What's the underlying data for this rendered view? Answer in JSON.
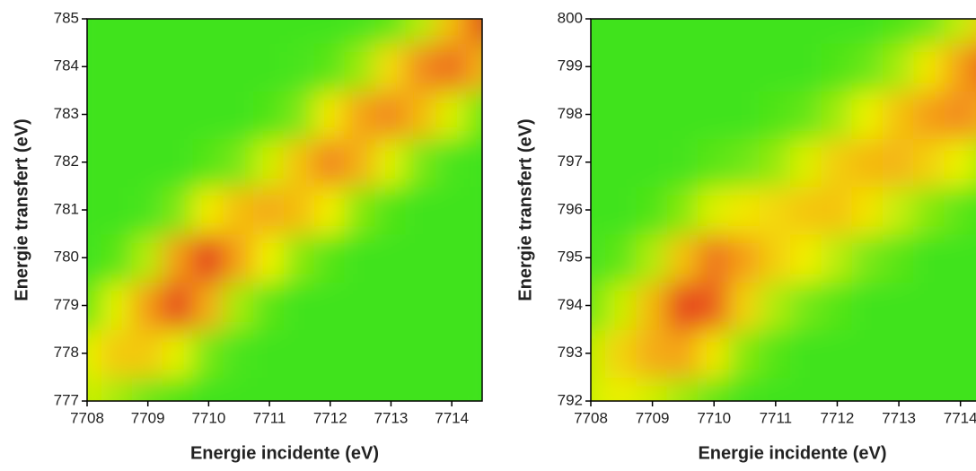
{
  "chart_data": [
    {
      "type": "heatmap",
      "xlabel": "Energie incidente (eV)",
      "ylabel": "Energie transfert (eV)",
      "xlim": [
        7708,
        7714.5
      ],
      "ylim": [
        777,
        785
      ],
      "xticks": [
        7708,
        7709,
        7710,
        7711,
        7712,
        7713,
        7714
      ],
      "yticks": [
        777,
        778,
        779,
        780,
        781,
        782,
        783,
        784,
        785
      ],
      "x": [
        7708,
        7708.5,
        7709,
        7709.5,
        7710,
        7710.5,
        7711,
        7711.5,
        7712,
        7712.5,
        7713,
        7713.5,
        7714,
        7714.5
      ],
      "y": [
        777,
        778,
        779,
        780,
        781,
        782,
        783,
        784,
        785
      ],
      "z": [
        [
          0.27,
          0.19,
          0.09,
          0.03,
          0,
          0,
          0,
          0,
          0,
          0,
          0,
          0,
          0,
          0
        ],
        [
          0.32,
          0.49,
          0.49,
          0.31,
          0.1,
          0.02,
          0,
          0,
          0,
          0,
          0,
          0,
          0,
          0
        ],
        [
          0.09,
          0.31,
          0.66,
          0.9,
          0.6,
          0.19,
          0.05,
          0,
          0,
          0,
          0,
          0,
          0,
          0
        ],
        [
          0,
          0.05,
          0.22,
          0.66,
          0.93,
          0.64,
          0.33,
          0.14,
          0.04,
          0,
          0,
          0,
          0,
          0
        ],
        [
          0,
          0,
          0.02,
          0.12,
          0.36,
          0.53,
          0.6,
          0.53,
          0.35,
          0.13,
          0.03,
          0,
          0,
          0
        ],
        [
          0,
          0,
          0,
          0,
          0.04,
          0.11,
          0.27,
          0.51,
          0.72,
          0.58,
          0.3,
          0.11,
          0.02,
          0
        ],
        [
          0,
          0,
          0,
          0,
          0,
          0,
          0.03,
          0.12,
          0.37,
          0.63,
          0.71,
          0.55,
          0.29,
          0.1
        ],
        [
          0,
          0,
          0,
          0,
          0,
          0,
          0,
          0.02,
          0.05,
          0.17,
          0.42,
          0.7,
          0.78,
          0.59
        ],
        [
          0,
          0,
          0,
          0,
          0,
          0,
          0,
          0,
          0,
          0.02,
          0.06,
          0.22,
          0.53,
          0.86
        ]
      ],
      "colors": [
        "#3fe31c",
        "#f2f200",
        "#f59a1a",
        "#e0201a"
      ]
    },
    {
      "type": "heatmap",
      "xlabel": "Energie incidente (eV)",
      "ylabel": "Energie transfert (eV)",
      "xlim": [
        7708,
        7714.5
      ],
      "ylim": [
        792,
        800
      ],
      "xticks": [
        7708,
        7709,
        7710,
        7711,
        7712,
        7713,
        7714
      ],
      "yticks": [
        792,
        793,
        794,
        795,
        796,
        797,
        798,
        799,
        800
      ],
      "x": [
        7708,
        7708.5,
        7709,
        7709.5,
        7710,
        7710.5,
        7711,
        7711.5,
        7712,
        7712.5,
        7713,
        7713.5,
        7714,
        7714.5
      ],
      "y": [
        792,
        793,
        794,
        795,
        796,
        797,
        798,
        799,
        800
      ],
      "z": [
        [
          0.28,
          0.32,
          0.27,
          0.18,
          0.07,
          0.01,
          0,
          0,
          0,
          0,
          0,
          0,
          0,
          0
        ],
        [
          0.26,
          0.45,
          0.6,
          0.63,
          0.38,
          0.13,
          0.04,
          0,
          0,
          0,
          0,
          0,
          0,
          0
        ],
        [
          0.1,
          0.26,
          0.55,
          0.9,
          0.84,
          0.46,
          0.21,
          0.1,
          0.04,
          0,
          0,
          0,
          0,
          0
        ],
        [
          0.02,
          0.06,
          0.21,
          0.52,
          0.77,
          0.65,
          0.47,
          0.35,
          0.23,
          0.11,
          0.05,
          0,
          0,
          0
        ],
        [
          0,
          0,
          0.03,
          0.13,
          0.29,
          0.38,
          0.43,
          0.5,
          0.51,
          0.39,
          0.25,
          0.13,
          0.06,
          0
        ],
        [
          0,
          0,
          0,
          0.01,
          0.05,
          0.09,
          0.16,
          0.29,
          0.47,
          0.55,
          0.56,
          0.46,
          0.32,
          0.17
        ],
        [
          0,
          0,
          0,
          0,
          0,
          0,
          0.03,
          0.07,
          0.18,
          0.32,
          0.51,
          0.65,
          0.7,
          0.6
        ],
        [
          0,
          0,
          0,
          0,
          0,
          0,
          0,
          0,
          0.03,
          0.08,
          0.19,
          0.38,
          0.64,
          0.85
        ],
        [
          0,
          0,
          0,
          0,
          0,
          0,
          0,
          0,
          0,
          0,
          0.03,
          0.09,
          0.24,
          0.49
        ]
      ],
      "colors": [
        "#3fe31c",
        "#f2f200",
        "#f59a1a",
        "#e0201a"
      ]
    }
  ]
}
